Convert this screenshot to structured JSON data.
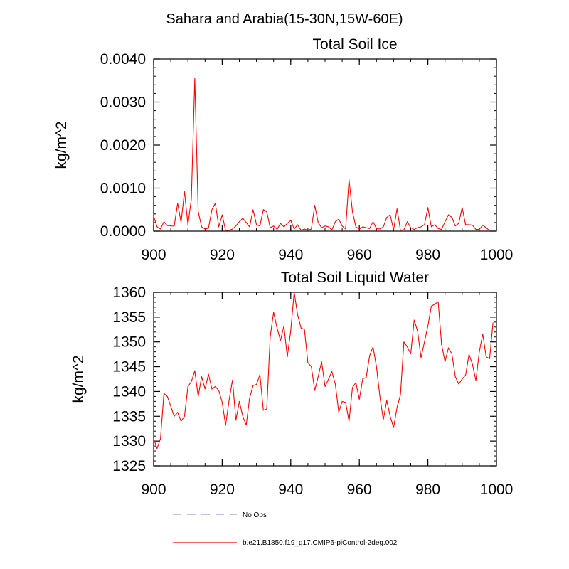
{
  "suptitle": "Sahara and Arabia(15-30N,15W-60E)",
  "legend": {
    "items": [
      {
        "label": "No Obs",
        "color": "#9999dd",
        "dash": true
      },
      {
        "label": "b.e21.B1850.f19_g17.CMIP6-piControl-2deg.002",
        "color": "#ff0000",
        "dash": false
      }
    ]
  },
  "chart_data": [
    {
      "type": "line",
      "title": "Total Soil Ice",
      "xlabel": "",
      "ylabel": "kg/m^2",
      "xlim": [
        900,
        1000
      ],
      "ylim": [
        0,
        0.004
      ],
      "xticks": [
        900,
        920,
        940,
        960,
        980,
        1000
      ],
      "xtick_labels": [
        "900",
        "920",
        "940",
        "960",
        "980",
        "1000"
      ],
      "yticks": [
        0,
        0.001,
        0.002,
        0.003,
        0.004
      ],
      "ytick_labels": [
        "0.0000",
        "0.0010",
        "0.0020",
        "0.0030",
        "0.0040"
      ],
      "series": [
        {
          "color": "#ff0000",
          "x_start": 900,
          "x_step": 1,
          "values": [
            0.00035,
            0.0001,
            5e-05,
            0.00022,
            0.00013,
            0.00012,
            0.00012,
            0.00065,
            0.0002,
            0.00092,
            0.00015,
            0.00075,
            0.00355,
            0.00045,
            0.0001,
            5e-05,
            7e-05,
            0.0005,
            0.00065,
            0.0001,
            0.00038,
            1e-05,
            2e-05,
            5e-05,
            0.00012,
            0.00022,
            0.0003,
            0.0002,
            0.0001,
            0.0005,
            0.00015,
            0.00012,
            0.0005,
            0.00045,
            8e-05,
            0.00012,
            4e-05,
            0.00018,
            0.0001,
            0.00018,
            0.00025,
            5e-05,
            0.00015,
            2e-05,
            5e-05,
            2e-05,
            5e-05,
            0.0006,
            0.0002,
            8e-05,
            0.00012,
            0.0001,
            3e-05,
            0.00022,
            0.00028,
            0.00012,
            5e-05,
            0.0012,
            0.00045,
            0.0001,
            5e-05,
            0.0001,
            8e-05,
            6e-05,
            0.00022,
            6e-05,
            5e-05,
            0.0001,
            0.00032,
            0.00038,
            3e-05,
            0.00052,
            2e-05,
            3e-05,
            0.00022,
            8e-05,
            4e-05,
            8e-05,
            0.0001,
            0.00015,
            0.00055,
            0.0001,
            0.00015,
            6e-05,
            4e-05,
            0.00022,
            0.00038,
            0.00032,
            0.00012,
            0.00018,
            0.00055,
            0.00015,
            0.00015,
            0.00014,
            4e-05,
            4e-05,
            0.00014,
            8e-05,
            1e-05
          ]
        }
      ]
    },
    {
      "type": "line",
      "title": "Total Soil Liquid Water",
      "xlabel": "",
      "ylabel": "kg/m^2",
      "xlim": [
        900,
        1000
      ],
      "ylim": [
        1325,
        1360
      ],
      "xticks": [
        900,
        920,
        940,
        960,
        980,
        1000
      ],
      "xtick_labels": [
        "900",
        "920",
        "940",
        "960",
        "980",
        "1000"
      ],
      "yticks": [
        1325,
        1330,
        1335,
        1340,
        1345,
        1350,
        1355,
        1360
      ],
      "ytick_labels": [
        "1325",
        "1330",
        "1335",
        "1340",
        "1345",
        "1350",
        "1355",
        "1360"
      ],
      "series": [
        {
          "color": "#ff0000",
          "x_start": 900,
          "x_step": 1,
          "values": [
            1330.5,
            1328.5,
            1330.5,
            1339.6,
            1339,
            1337,
            1335,
            1335.8,
            1334,
            1335,
            1341,
            1342,
            1344.2,
            1339,
            1343,
            1340.5,
            1343.5,
            1340.5,
            1341,
            1340.2,
            1337.8,
            1333.2,
            1338.2,
            1342.3,
            1334.2,
            1338,
            1335,
            1333.2,
            1338.7,
            1341.2,
            1341.4,
            1343.4,
            1336.2,
            1336.5,
            1351,
            1356,
            1352.8,
            1350.3,
            1353.2,
            1347,
            1352.3,
            1360,
            1355.5,
            1352.8,
            1352.5,
            1345.8,
            1345,
            1340.2,
            1343,
            1346,
            1341,
            1342.5,
            1344,
            1341.5,
            1335.8,
            1338,
            1337.8,
            1334,
            1340.8,
            1341.8,
            1338.4,
            1342.6,
            1342.8,
            1347.2,
            1349,
            1345,
            1339,
            1334.3,
            1338.2,
            1335,
            1332.7,
            1336.8,
            1339.3,
            1350,
            1349,
            1347.6,
            1354.4,
            1352.2,
            1346.8,
            1350,
            1353.2,
            1357.2,
            1357.6,
            1358.1,
            1349.5,
            1346,
            1348.8,
            1347.6,
            1343,
            1341.5,
            1342.5,
            1343.3,
            1347.5,
            1345.5,
            1342.2,
            1348,
            1351.6,
            1347,
            1346.6,
            1353.9
          ]
        }
      ]
    }
  ]
}
